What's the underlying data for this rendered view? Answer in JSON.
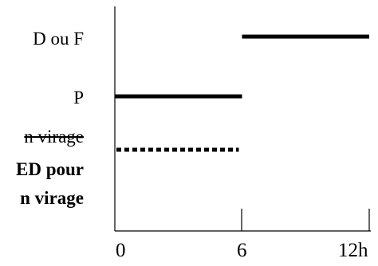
{
  "rows": [
    {
      "label": "D ou F",
      "style": "solid",
      "start": 6,
      "end": 12
    },
    {
      "label": "P",
      "style": "solid",
      "start": 0,
      "end": 6
    },
    {
      "label": "n virage",
      "style": "dotted",
      "start": 0,
      "end": 6,
      "struck": true
    },
    {
      "label_lines": [
        "ED pour",
        "n virage"
      ],
      "bold": true
    }
  ],
  "axis": {
    "ticks": [
      {
        "value": 0,
        "label": "0"
      },
      {
        "value": 6,
        "label": "6"
      },
      {
        "value": 12,
        "label": "12h"
      }
    ]
  },
  "colors": {
    "line": "#000000",
    "background": "#ffffff"
  }
}
